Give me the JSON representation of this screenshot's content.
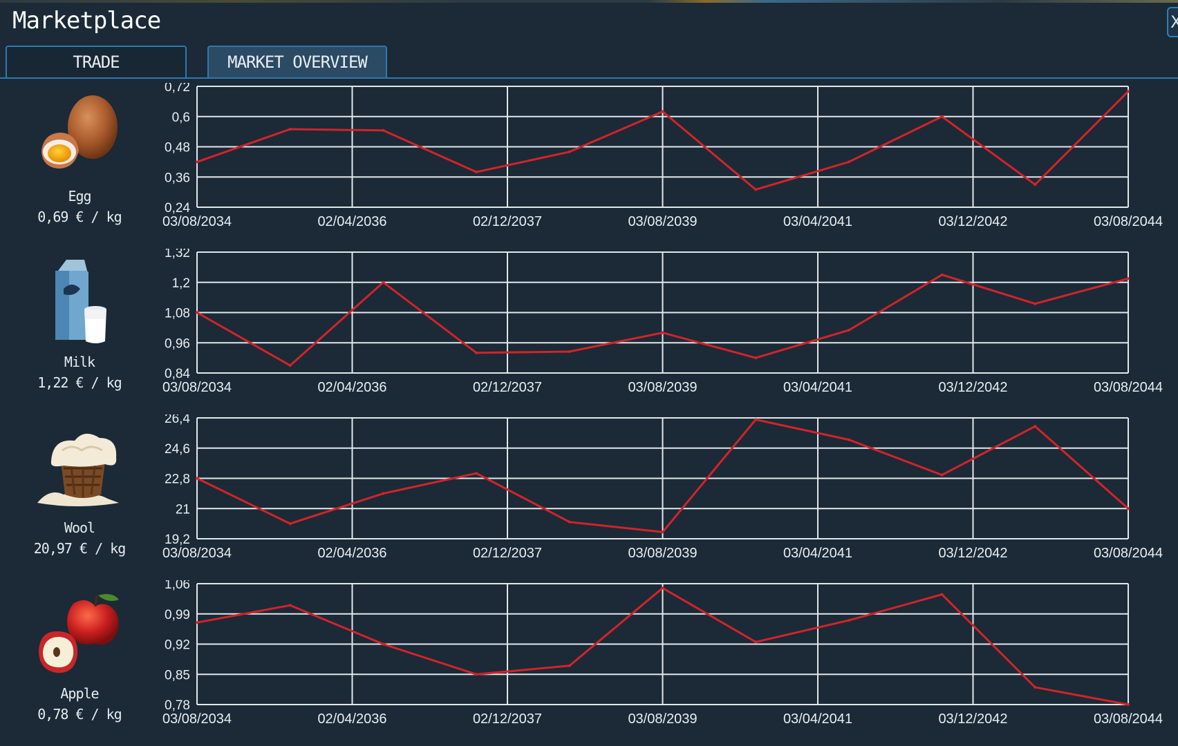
{
  "window": {
    "title": "Marketplace",
    "close_label": "X"
  },
  "tabs": [
    {
      "label": "TRADE",
      "active": false
    },
    {
      "label": "MARKET OVERVIEW",
      "active": true
    }
  ],
  "colors": {
    "line": "#d2232a",
    "grid": "#e3e8ec",
    "background": "#1b2a36",
    "accent": "#2f79b1"
  },
  "products": [
    {
      "name": "Egg",
      "price": "0,69 € / kg",
      "icon": "egg-icon"
    },
    {
      "name": "Milk",
      "price": "1,22 € / kg",
      "icon": "milk-icon"
    },
    {
      "name": "Wool",
      "price": "20,97 € / kg",
      "icon": "wool-icon"
    },
    {
      "name": "Apple",
      "price": "0,78 € / kg",
      "icon": "apple-icon"
    }
  ],
  "chart_data": [
    {
      "type": "line",
      "x_labels": [
        "03/08/2034",
        "02/04/2036",
        "02/12/2037",
        "03/08/2039",
        "03/04/2041",
        "03/12/2042",
        "03/08/2044"
      ],
      "y_labels": [
        "0,24",
        "0,36",
        "0,48",
        "0,6",
        "0,72"
      ],
      "ylim": [
        0.24,
        0.72
      ],
      "x": [
        "2034-08",
        "2035-08",
        "2036-08",
        "2037-08",
        "2038-08",
        "2039-08",
        "2040-08",
        "2041-08",
        "2042-08",
        "2043-08",
        "2044-08"
      ],
      "values": [
        0.42,
        0.55,
        0.545,
        0.38,
        0.46,
        0.62,
        0.31,
        0.42,
        0.6,
        0.33,
        0.7
      ],
      "grid": true
    },
    {
      "type": "line",
      "x_labels": [
        "03/08/2034",
        "02/04/2036",
        "02/12/2037",
        "03/08/2039",
        "03/04/2041",
        "03/12/2042",
        "03/08/2044"
      ],
      "y_labels": [
        "0,84",
        "0,96",
        "1,08",
        "1,2",
        "1,32"
      ],
      "ylim": [
        0.84,
        1.32
      ],
      "x": [
        "2034-08",
        "2035-08",
        "2036-08",
        "2037-08",
        "2038-08",
        "2039-08",
        "2040-08",
        "2041-08",
        "2042-08",
        "2043-08",
        "2044-08"
      ],
      "values": [
        1.08,
        0.87,
        1.2,
        0.92,
        0.925,
        1.0,
        0.9,
        1.01,
        1.23,
        1.115,
        1.215
      ],
      "grid": true
    },
    {
      "type": "line",
      "x_labels": [
        "03/08/2034",
        "02/04/2036",
        "02/12/2037",
        "03/08/2039",
        "03/04/2041",
        "03/12/2042",
        "03/08/2044"
      ],
      "y_labels": [
        "19,2",
        "21",
        "22,8",
        "24,6",
        "26,4"
      ],
      "ylim": [
        19.2,
        26.4
      ],
      "x": [
        "2034-08",
        "2035-08",
        "2036-08",
        "2037-08",
        "2038-08",
        "2039-08",
        "2040-08",
        "2041-08",
        "2042-08",
        "2043-08",
        "2044-08"
      ],
      "values": [
        22.8,
        20.1,
        21.9,
        23.1,
        20.2,
        19.6,
        26.3,
        25.1,
        23.0,
        25.9,
        21.0
      ],
      "grid": true
    },
    {
      "type": "line",
      "x_labels": [
        "03/08/2034",
        "02/04/2036",
        "02/12/2037",
        "03/08/2039",
        "03/04/2041",
        "03/12/2042",
        "03/08/2044"
      ],
      "y_labels": [
        "0,78",
        "0,85",
        "0,92",
        "0,99",
        "1,06"
      ],
      "ylim": [
        0.78,
        1.06
      ],
      "x": [
        "2034-08",
        "2035-08",
        "2036-08",
        "2037-08",
        "2038-08",
        "2039-08",
        "2040-08",
        "2041-08",
        "2042-08",
        "2043-08",
        "2044-08"
      ],
      "values": [
        0.97,
        1.01,
        0.92,
        0.85,
        0.87,
        1.05,
        0.925,
        0.975,
        1.035,
        0.82,
        0.78
      ],
      "grid": true
    }
  ]
}
